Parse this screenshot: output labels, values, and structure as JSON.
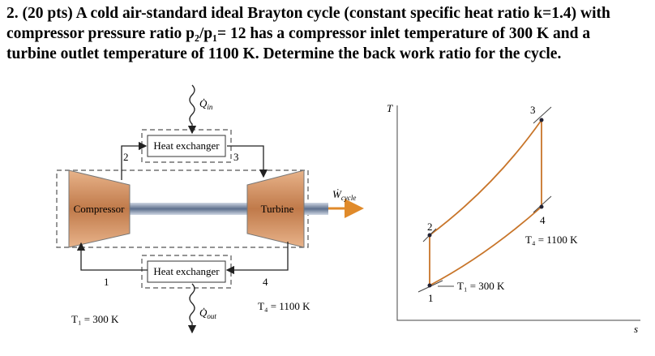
{
  "problem": {
    "lines": [
      "2. (20 pts) A cold air-standard ideal Brayton cycle (constant specific heat ratio k=1.4) with",
      "compressor pressure ratio p₂/p₁= 12 has a compressor inlet temperature of 300 K and a",
      "turbine outlet temperature of 1100 K. Determine the back work ratio for the cycle."
    ]
  },
  "schematic": {
    "heat_in": {
      "symbol": "Q̇",
      "subscript": "in"
    },
    "heat_out": {
      "symbol": "Q̇",
      "subscript": "out"
    },
    "work": {
      "symbol": "Ẇ",
      "subscript": "cycle"
    },
    "heat_exchanger_top": "Heat exchanger",
    "heat_exchanger_bottom": "Heat exchanger",
    "compressor": "Compressor",
    "turbine": "Turbine",
    "states": [
      "1",
      "2",
      "3",
      "4"
    ],
    "t1_label": "T₁ = 300 K",
    "t4_label": "T₄ = 1100 K"
  },
  "ts_diagram": {
    "y_axis": "T",
    "x_axis": "s",
    "states": [
      "1",
      "2",
      "3",
      "4"
    ],
    "t4_label": "T₄ = 1100 K",
    "t1_label": "T₁ = 300 K"
  }
}
